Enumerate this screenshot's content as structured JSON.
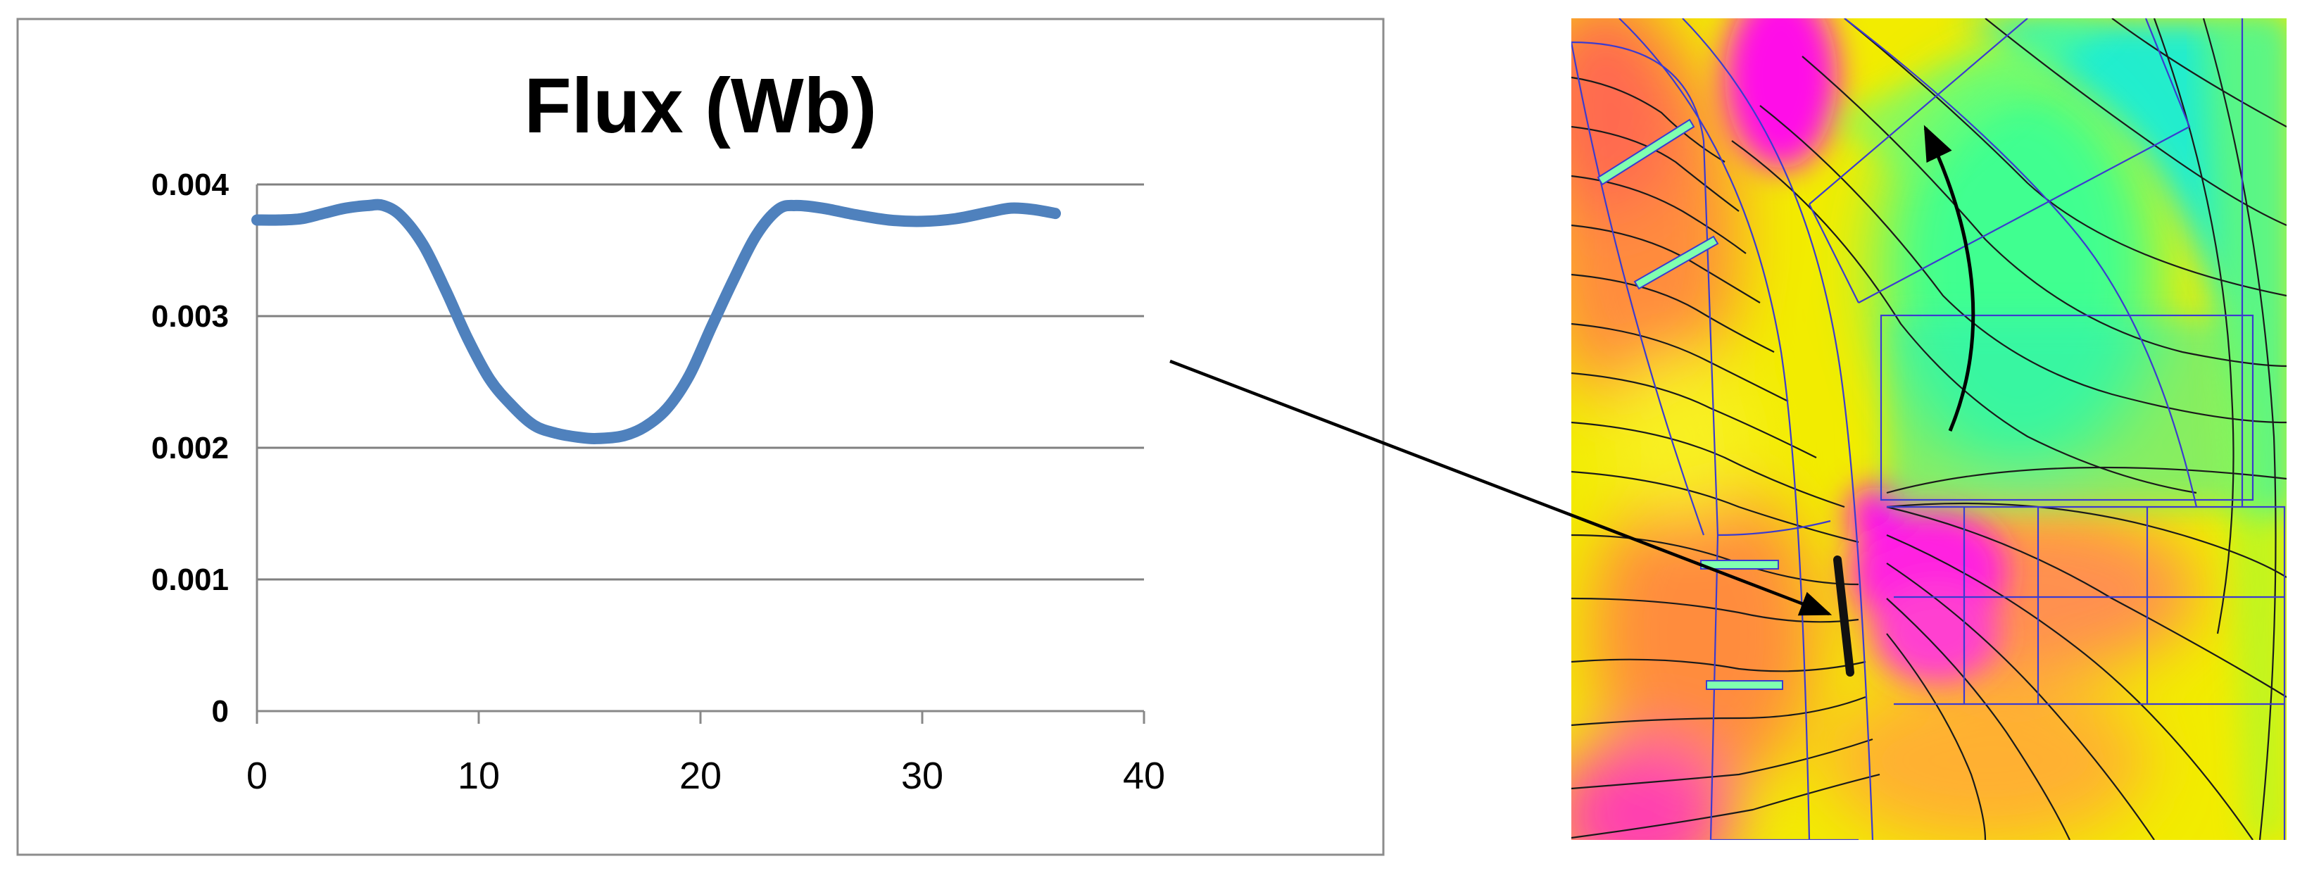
{
  "chart_data": {
    "type": "line",
    "title": "Flux (Wb)",
    "xlabel": "",
    "ylabel": "",
    "xlim": [
      0,
      40
    ],
    "ylim": [
      0,
      0.004
    ],
    "x_ticks": [
      "0",
      "10",
      "20",
      "30",
      "40"
    ],
    "y_ticks": [
      "0",
      "0.001",
      "0.002",
      "0.003",
      "0.004"
    ],
    "grid": "horizontal",
    "legend": "none",
    "series": [
      {
        "color": "#4f81bd",
        "x": [
          0,
          1,
          2,
          3,
          4,
          5,
          5.7,
          6.5,
          7.5,
          8.5,
          9.5,
          10.5,
          11.5,
          12.5,
          13.5,
          14.5,
          15.3,
          16.5,
          17.5,
          18.5,
          19.5,
          20.5,
          21.5,
          22.5,
          23.5,
          24.3,
          25.5,
          27,
          28.5,
          30,
          31.5,
          33,
          34,
          35,
          36
        ],
        "y": [
          0.00373,
          0.00373,
          0.00374,
          0.00378,
          0.00382,
          0.00384,
          0.00384,
          0.00376,
          0.00354,
          0.0032,
          0.00283,
          0.00252,
          0.00232,
          0.00217,
          0.00211,
          0.00208,
          0.00207,
          0.00209,
          0.00216,
          0.0023,
          0.00255,
          0.00292,
          0.00328,
          0.00361,
          0.00381,
          0.00384,
          0.00382,
          0.00377,
          0.00373,
          0.00372,
          0.00374,
          0.00379,
          0.00382,
          0.00381,
          0.00378
        ]
      }
    ]
  },
  "colors": {
    "line": "#4f81bd",
    "grid": "#808080",
    "frame": "#888888",
    "sim_cyan": "#00f0f0",
    "sim_magenta": "#ff20e0",
    "sim_orange": "#ff9a40",
    "sim_yellow": "#f4f000",
    "sim_green": "#80ff60"
  }
}
